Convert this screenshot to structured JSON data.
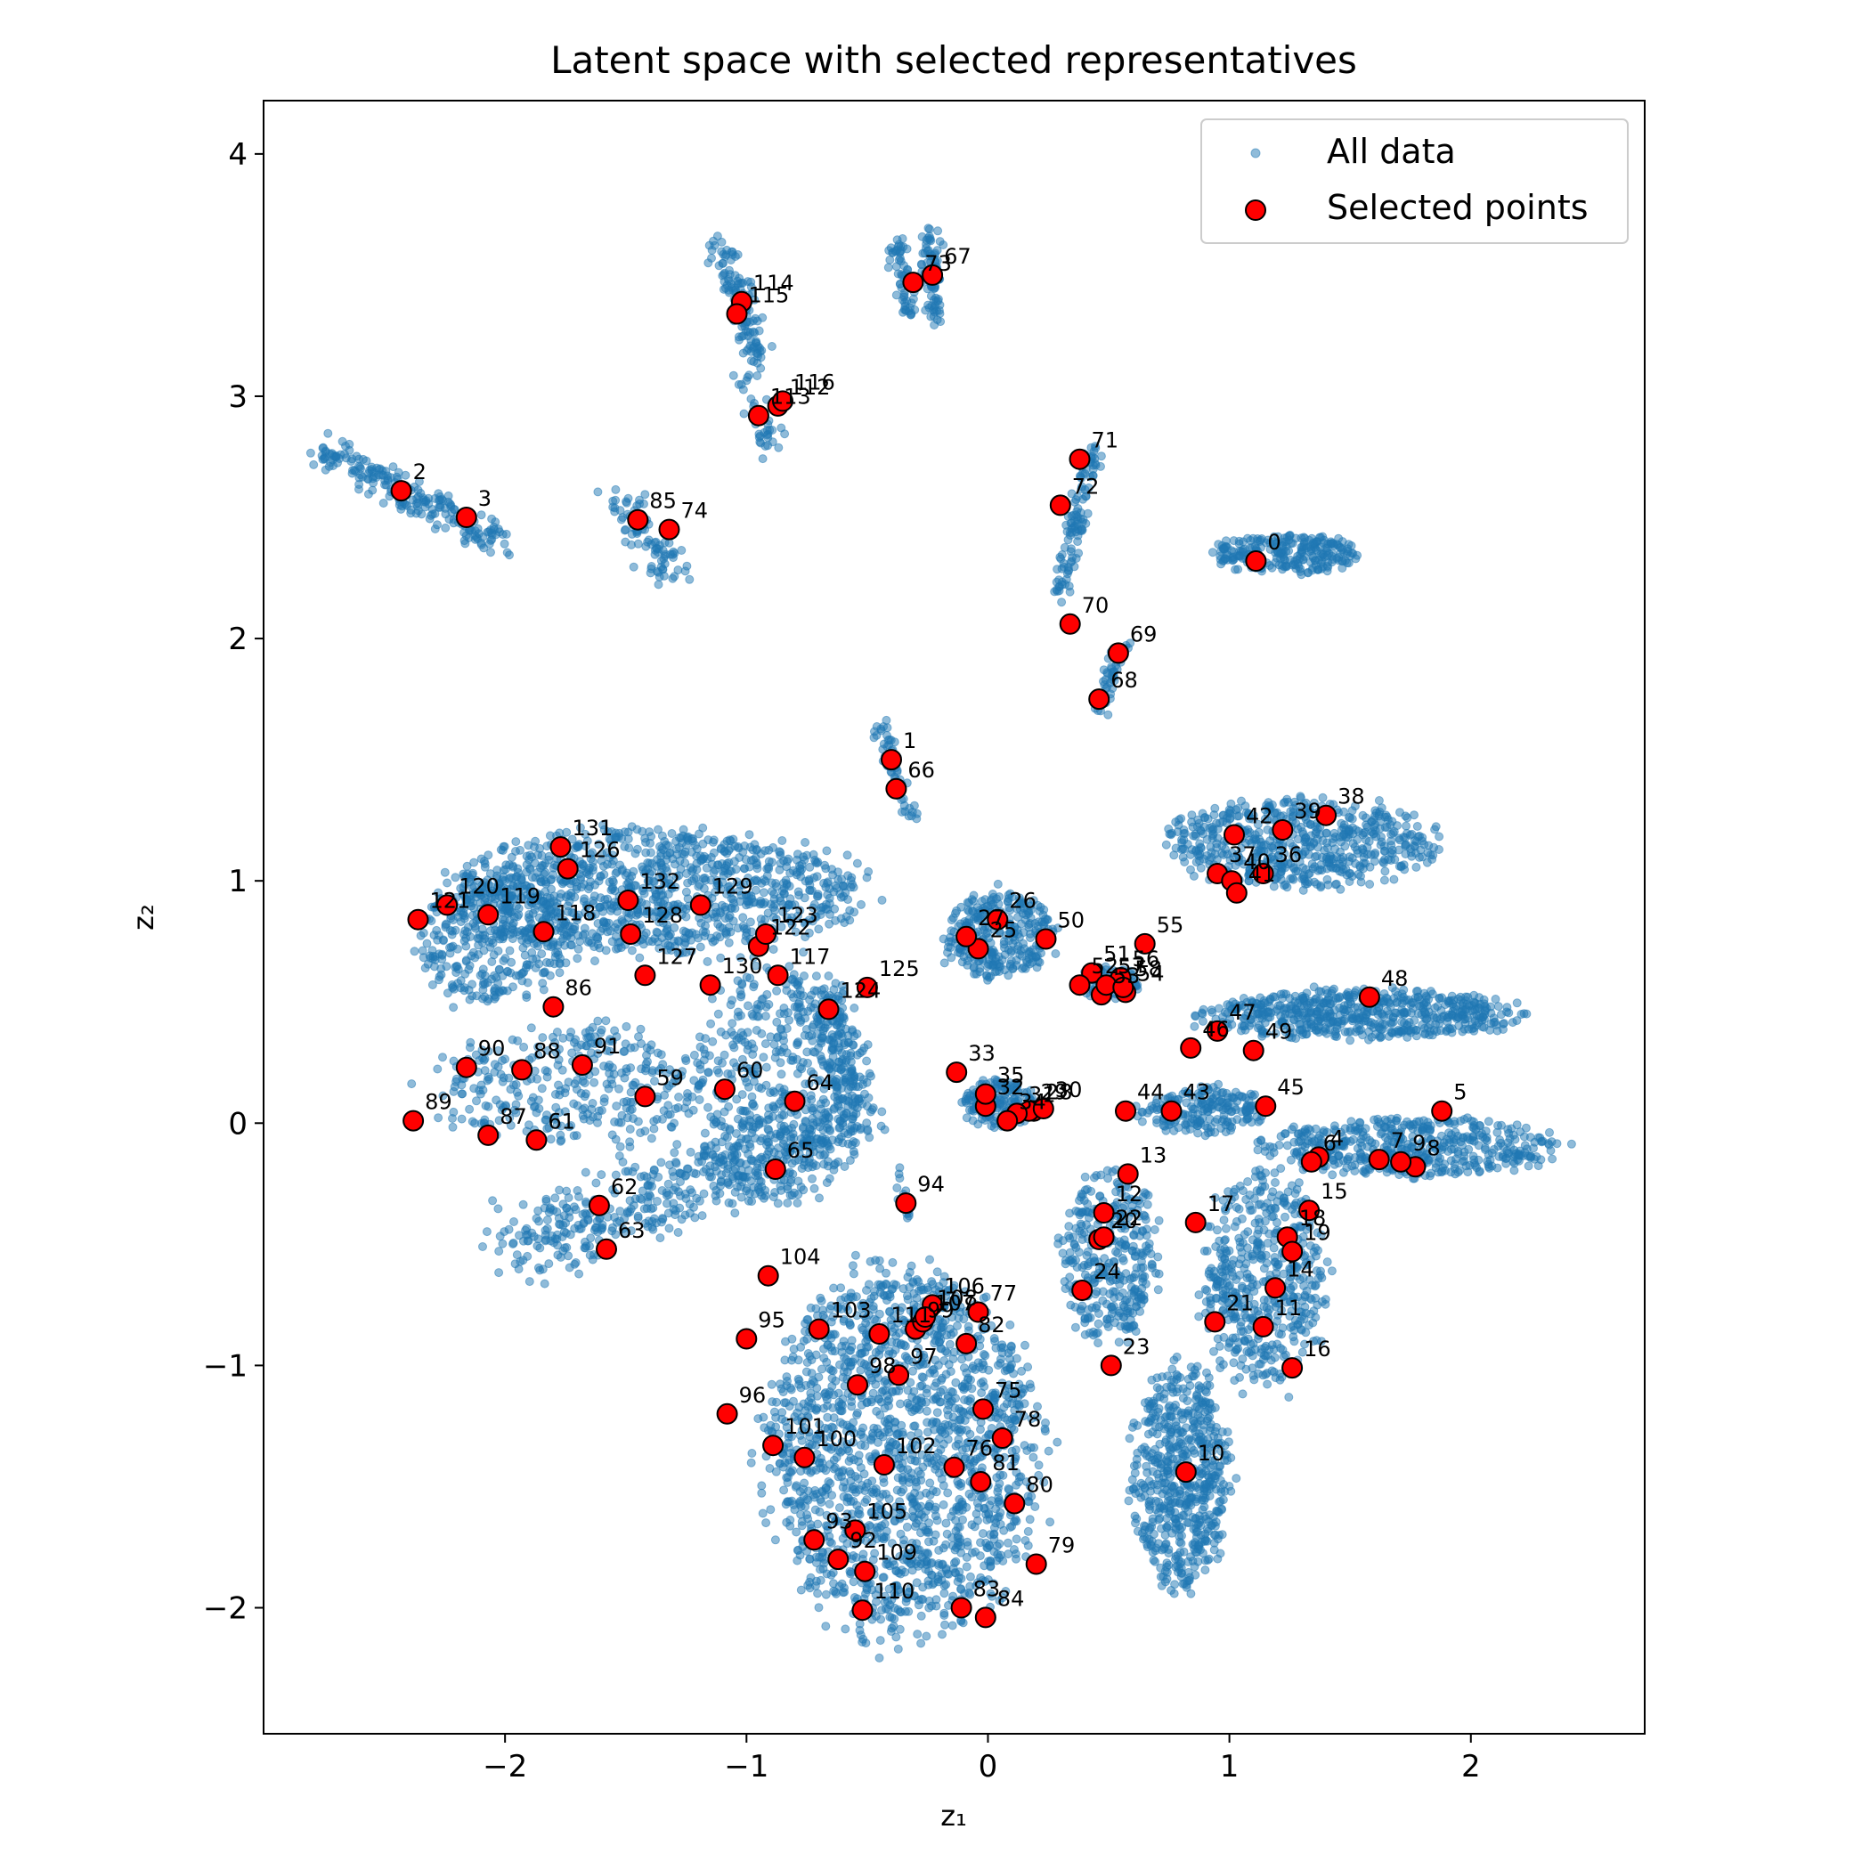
{
  "chart_data": {
    "type": "scatter",
    "title": "Latent space with selected representatives",
    "xlabel": "z₁",
    "ylabel": "z₂",
    "xlim": [
      -3.0,
      2.72
    ],
    "ylim": [
      -2.52,
      4.22
    ],
    "xticks": [
      -2,
      -1,
      0,
      1,
      2
    ],
    "yticks": [
      -2,
      -1,
      0,
      1,
      2,
      3,
      4
    ],
    "xtick_labels": [
      "−2",
      "−1",
      "0",
      "1",
      "2"
    ],
    "ytick_labels": [
      "−2",
      "−1",
      "0",
      "1",
      "2",
      "3",
      "4"
    ],
    "grid": false,
    "legend_position": "top-right",
    "legend": [
      "All data",
      "Selected points"
    ],
    "colors": {
      "all_data": "#1f77b4",
      "selected_fill": "#ff0000",
      "selected_edge": "#000000"
    },
    "all_data_clusters": [
      {
        "shape": "line",
        "from": [
          -2.75,
          2.78
        ],
        "to": [
          -2.0,
          2.38
        ],
        "n": 220,
        "spread": 0.03
      },
      {
        "shape": "line",
        "from": [
          -1.55,
          2.62
        ],
        "to": [
          -1.3,
          2.25
        ],
        "n": 90,
        "spread": 0.04
      },
      {
        "shape": "line",
        "from": [
          -1.1,
          3.62
        ],
        "to": [
          -0.95,
          3.15
        ],
        "n": 130,
        "spread": 0.03
      },
      {
        "shape": "line",
        "from": [
          -1.0,
          3.1
        ],
        "to": [
          -0.9,
          2.8
        ],
        "n": 40,
        "spread": 0.03
      },
      {
        "shape": "line",
        "from": [
          -0.38,
          3.65
        ],
        "to": [
          -0.33,
          3.35
        ],
        "n": 60,
        "spread": 0.02
      },
      {
        "shape": "line",
        "from": [
          -0.24,
          3.68
        ],
        "to": [
          -0.22,
          3.32
        ],
        "n": 80,
        "spread": 0.02
      },
      {
        "shape": "line",
        "from": [
          0.44,
          2.8
        ],
        "to": [
          0.3,
          2.2
        ],
        "n": 110,
        "spread": 0.02
      },
      {
        "shape": "line",
        "from": [
          0.56,
          2.0
        ],
        "to": [
          0.46,
          1.7
        ],
        "n": 50,
        "spread": 0.02
      },
      {
        "shape": "blob",
        "cx": 1.25,
        "cy": 2.35,
        "rx": 0.3,
        "ry": 0.08,
        "n": 260
      },
      {
        "shape": "line",
        "from": [
          -0.45,
          1.65
        ],
        "to": [
          -0.32,
          1.25
        ],
        "n": 60,
        "spread": 0.02
      },
      {
        "shape": "blob",
        "cx": -1.4,
        "cy": 0.95,
        "rx": 0.85,
        "ry": 0.25,
        "n": 1100
      },
      {
        "shape": "blob",
        "cx": -2.05,
        "cy": 0.75,
        "rx": 0.3,
        "ry": 0.25,
        "n": 300
      },
      {
        "shape": "blob",
        "cx": -1.7,
        "cy": 0.15,
        "rx": 0.6,
        "ry": 0.25,
        "n": 350
      },
      {
        "shape": "blob",
        "cx": -0.85,
        "cy": 0.15,
        "rx": 0.35,
        "ry": 0.5,
        "n": 450
      },
      {
        "shape": "line",
        "from": [
          -1.95,
          -0.5
        ],
        "to": [
          -0.55,
          0.0
        ],
        "n": 500,
        "spread": 0.08
      },
      {
        "shape": "line",
        "from": [
          -0.7,
          0.55
        ],
        "to": [
          -0.55,
          0.05
        ],
        "n": 160,
        "spread": 0.05
      },
      {
        "shape": "blob",
        "cx": 0.05,
        "cy": 0.78,
        "rx": 0.22,
        "ry": 0.18,
        "n": 300
      },
      {
        "shape": "blob",
        "cx": 0.5,
        "cy": 0.58,
        "rx": 0.12,
        "ry": 0.07,
        "n": 100
      },
      {
        "shape": "blob",
        "cx": 0.05,
        "cy": 0.08,
        "rx": 0.15,
        "ry": 0.1,
        "n": 150
      },
      {
        "shape": "blob",
        "cx": 1.3,
        "cy": 1.15,
        "rx": 0.55,
        "ry": 0.18,
        "n": 600
      },
      {
        "shape": "blob",
        "cx": 1.55,
        "cy": 0.45,
        "rx": 0.65,
        "ry": 0.1,
        "n": 600
      },
      {
        "shape": "blob",
        "cx": 1.75,
        "cy": -0.1,
        "rx": 0.6,
        "ry": 0.12,
        "n": 500
      },
      {
        "shape": "blob",
        "cx": 0.9,
        "cy": 0.05,
        "rx": 0.25,
        "ry": 0.1,
        "n": 200
      },
      {
        "shape": "blob",
        "cx": 0.5,
        "cy": -0.55,
        "rx": 0.2,
        "ry": 0.35,
        "n": 350
      },
      {
        "shape": "blob",
        "cx": 1.15,
        "cy": -0.65,
        "rx": 0.25,
        "ry": 0.45,
        "n": 500
      },
      {
        "shape": "blob",
        "cx": 0.8,
        "cy": -1.45,
        "rx": 0.2,
        "ry": 0.45,
        "n": 600
      },
      {
        "shape": "blob",
        "cx": -0.35,
        "cy": -1.35,
        "rx": 0.55,
        "ry": 0.75,
        "n": 1700
      },
      {
        "shape": "line",
        "from": [
          -0.37,
          -0.2
        ],
        "to": [
          -0.33,
          -0.4
        ],
        "n": 15,
        "spread": 0.01
      }
    ],
    "all_data_seed": 7,
    "selected_points": [
      {
        "id": "0",
        "x": 1.11,
        "y": 2.32
      },
      {
        "id": "1",
        "x": -0.4,
        "y": 1.5
      },
      {
        "id": "2",
        "x": -2.43,
        "y": 2.61
      },
      {
        "id": "3",
        "x": -2.16,
        "y": 2.5
      },
      {
        "id": "4",
        "x": 1.37,
        "y": -0.14
      },
      {
        "id": "5",
        "x": 1.88,
        "y": 0.05
      },
      {
        "id": "6",
        "x": 1.34,
        "y": -0.16
      },
      {
        "id": "7",
        "x": 1.62,
        "y": -0.15
      },
      {
        "id": "8",
        "x": 1.77,
        "y": -0.18
      },
      {
        "id": "9",
        "x": 1.71,
        "y": -0.16
      },
      {
        "id": "10",
        "x": 0.82,
        "y": -1.44
      },
      {
        "id": "11",
        "x": 1.14,
        "y": -0.84
      },
      {
        "id": "12",
        "x": 0.48,
        "y": -0.37
      },
      {
        "id": "13",
        "x": 0.58,
        "y": -0.21
      },
      {
        "id": "14",
        "x": 1.19,
        "y": -0.68
      },
      {
        "id": "15",
        "x": 1.33,
        "y": -0.36
      },
      {
        "id": "16",
        "x": 1.26,
        "y": -1.01
      },
      {
        "id": "17",
        "x": 0.86,
        "y": -0.41
      },
      {
        "id": "18",
        "x": 1.24,
        "y": -0.47
      },
      {
        "id": "19",
        "x": 1.26,
        "y": -0.53
      },
      {
        "id": "20",
        "x": 0.46,
        "y": -0.48
      },
      {
        "id": "21",
        "x": 0.94,
        "y": -0.82
      },
      {
        "id": "22",
        "x": 0.48,
        "y": -0.47
      },
      {
        "id": "23",
        "x": 0.51,
        "y": -1.0
      },
      {
        "id": "24",
        "x": 0.39,
        "y": -0.69
      },
      {
        "id": "25",
        "x": -0.04,
        "y": 0.72
      },
      {
        "id": "26",
        "x": 0.04,
        "y": 0.84
      },
      {
        "id": "27",
        "x": -0.09,
        "y": 0.77
      },
      {
        "id": "28",
        "x": 0.19,
        "y": 0.05
      },
      {
        "id": "29",
        "x": 0.17,
        "y": 0.05
      },
      {
        "id": "30",
        "x": 0.23,
        "y": 0.06
      },
      {
        "id": "31",
        "x": 0.12,
        "y": 0.04
      },
      {
        "id": "32",
        "x": -0.01,
        "y": 0.07
      },
      {
        "id": "33",
        "x": -0.13,
        "y": 0.21
      },
      {
        "id": "34",
        "x": 0.08,
        "y": 0.01
      },
      {
        "id": "35",
        "x": -0.01,
        "y": 0.12
      },
      {
        "id": "36",
        "x": 1.14,
        "y": 1.03
      },
      {
        "id": "37",
        "x": 0.95,
        "y": 1.03
      },
      {
        "id": "38",
        "x": 1.4,
        "y": 1.27
      },
      {
        "id": "39",
        "x": 1.22,
        "y": 1.21
      },
      {
        "id": "40",
        "x": 1.01,
        "y": 1.0
      },
      {
        "id": "41",
        "x": 1.03,
        "y": 0.95
      },
      {
        "id": "42",
        "x": 1.02,
        "y": 1.19
      },
      {
        "id": "43",
        "x": 0.76,
        "y": 0.05
      },
      {
        "id": "44",
        "x": 0.57,
        "y": 0.05
      },
      {
        "id": "45",
        "x": 1.15,
        "y": 0.07
      },
      {
        "id": "46",
        "x": 0.84,
        "y": 0.31
      },
      {
        "id": "47",
        "x": 0.95,
        "y": 0.38
      },
      {
        "id": "48",
        "x": 1.58,
        "y": 0.52
      },
      {
        "id": "49",
        "x": 1.1,
        "y": 0.3
      },
      {
        "id": "50",
        "x": 0.24,
        "y": 0.76
      },
      {
        "id": "51",
        "x": 0.43,
        "y": 0.62
      },
      {
        "id": "52",
        "x": 0.38,
        "y": 0.57
      },
      {
        "id": "53",
        "x": 0.47,
        "y": 0.53
      },
      {
        "id": "54",
        "x": 0.57,
        "y": 0.54
      },
      {
        "id": "55",
        "x": 0.65,
        "y": 0.74
      },
      {
        "id": "56",
        "x": 0.55,
        "y": 0.6
      },
      {
        "id": "57",
        "x": 0.49,
        "y": 0.57
      },
      {
        "id": "58",
        "x": 0.56,
        "y": 0.56
      },
      {
        "id": "59",
        "x": -1.42,
        "y": 0.11
      },
      {
        "id": "60",
        "x": -1.09,
        "y": 0.14
      },
      {
        "id": "61",
        "x": -1.87,
        "y": -0.07
      },
      {
        "id": "62",
        "x": -1.61,
        "y": -0.34
      },
      {
        "id": "63",
        "x": -1.58,
        "y": -0.52
      },
      {
        "id": "64",
        "x": -0.8,
        "y": 0.09
      },
      {
        "id": "65",
        "x": -0.88,
        "y": -0.19
      },
      {
        "id": "66",
        "x": -0.38,
        "y": 1.38
      },
      {
        "id": "67",
        "x": -0.23,
        "y": 3.5
      },
      {
        "id": "68",
        "x": 0.46,
        "y": 1.75
      },
      {
        "id": "69",
        "x": 0.54,
        "y": 1.94
      },
      {
        "id": "70",
        "x": 0.34,
        "y": 2.06
      },
      {
        "id": "71",
        "x": 0.38,
        "y": 2.74
      },
      {
        "id": "72",
        "x": 0.3,
        "y": 2.55
      },
      {
        "id": "73",
        "x": -0.31,
        "y": 3.47
      },
      {
        "id": "74",
        "x": -1.32,
        "y": 2.45
      },
      {
        "id": "75",
        "x": -0.02,
        "y": -1.18
      },
      {
        "id": "76",
        "x": -0.14,
        "y": -1.42
      },
      {
        "id": "77",
        "x": -0.04,
        "y": -0.78
      },
      {
        "id": "78",
        "x": 0.06,
        "y": -1.3
      },
      {
        "id": "79",
        "x": 0.2,
        "y": -1.82
      },
      {
        "id": "80",
        "x": 0.11,
        "y": -1.57
      },
      {
        "id": "81",
        "x": -0.03,
        "y": -1.48
      },
      {
        "id": "82",
        "x": -0.09,
        "y": -0.91
      },
      {
        "id": "83",
        "x": -0.11,
        "y": -2.0
      },
      {
        "id": "84",
        "x": -0.01,
        "y": -2.04
      },
      {
        "id": "85",
        "x": -1.45,
        "y": 2.49
      },
      {
        "id": "86",
        "x": -1.8,
        "y": 0.48
      },
      {
        "id": "87",
        "x": -2.07,
        "y": -0.05
      },
      {
        "id": "88",
        "x": -1.93,
        "y": 0.22
      },
      {
        "id": "89",
        "x": -2.38,
        "y": 0.01
      },
      {
        "id": "90",
        "x": -2.16,
        "y": 0.23
      },
      {
        "id": "91",
        "x": -1.68,
        "y": 0.24
      },
      {
        "id": "92",
        "x": -0.62,
        "y": -1.8
      },
      {
        "id": "93",
        "x": -0.72,
        "y": -1.72
      },
      {
        "id": "94",
        "x": -0.34,
        "y": -0.33
      },
      {
        "id": "95",
        "x": -1.0,
        "y": -0.89
      },
      {
        "id": "96",
        "x": -1.08,
        "y": -1.2
      },
      {
        "id": "97",
        "x": -0.37,
        "y": -1.04
      },
      {
        "id": "98",
        "x": -0.54,
        "y": -1.08
      },
      {
        "id": "99",
        "x": -0.3,
        "y": -0.85
      },
      {
        "id": "100",
        "x": -0.76,
        "y": -1.38
      },
      {
        "id": "101",
        "x": -0.89,
        "y": -1.33
      },
      {
        "id": "102",
        "x": -0.43,
        "y": -1.41
      },
      {
        "id": "103",
        "x": -0.7,
        "y": -0.85
      },
      {
        "id": "104",
        "x": -0.91,
        "y": -0.63
      },
      {
        "id": "105",
        "x": -0.55,
        "y": -1.68
      },
      {
        "id": "106",
        "x": -0.23,
        "y": -0.75
      },
      {
        "id": "107",
        "x": -0.27,
        "y": -0.82
      },
      {
        "id": "108",
        "x": -0.26,
        "y": -0.8
      },
      {
        "id": "109",
        "x": -0.51,
        "y": -1.85
      },
      {
        "id": "110",
        "x": -0.52,
        "y": -2.01
      },
      {
        "id": "111",
        "x": -0.45,
        "y": -0.87
      },
      {
        "id": "112",
        "x": -0.87,
        "y": 2.96
      },
      {
        "id": "113",
        "x": -0.95,
        "y": 2.92
      },
      {
        "id": "114",
        "x": -1.02,
        "y": 3.39
      },
      {
        "id": "115",
        "x": -1.04,
        "y": 3.34
      },
      {
        "id": "116",
        "x": -0.85,
        "y": 2.98
      },
      {
        "id": "117",
        "x": -0.87,
        "y": 0.61
      },
      {
        "id": "118",
        "x": -1.84,
        "y": 0.79
      },
      {
        "id": "119",
        "x": -2.07,
        "y": 0.86
      },
      {
        "id": "120",
        "x": -2.24,
        "y": 0.9
      },
      {
        "id": "121",
        "x": -2.36,
        "y": 0.84
      },
      {
        "id": "122",
        "x": -0.95,
        "y": 0.73
      },
      {
        "id": "123",
        "x": -0.92,
        "y": 0.78
      },
      {
        "id": "124",
        "x": -0.66,
        "y": 0.47
      },
      {
        "id": "125",
        "x": -0.5,
        "y": 0.56
      },
      {
        "id": "126",
        "x": -1.74,
        "y": 1.05
      },
      {
        "id": "127",
        "x": -1.42,
        "y": 0.61
      },
      {
        "id": "128",
        "x": -1.48,
        "y": 0.78
      },
      {
        "id": "129",
        "x": -1.19,
        "y": 0.9
      },
      {
        "id": "130",
        "x": -1.15,
        "y": 0.57
      },
      {
        "id": "131",
        "x": -1.77,
        "y": 1.14
      },
      {
        "id": "132",
        "x": -1.49,
        "y": 0.92
      }
    ]
  }
}
